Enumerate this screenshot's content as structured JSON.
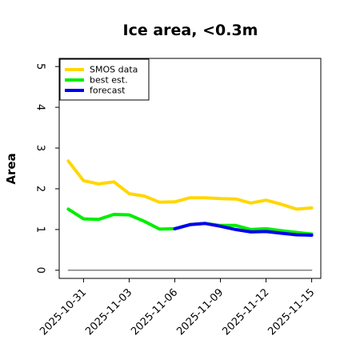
{
  "chart_data": {
    "type": "line",
    "title": "Ice area, <0.3m",
    "xlabel": "",
    "ylabel": "Area",
    "ylim": [
      -0.2,
      5.2
    ],
    "yticks": [
      0,
      1,
      2,
      3,
      4,
      5
    ],
    "x_start": "2025-10-30",
    "x_end": "2025-11-15",
    "xlim": [
      -0.6,
      16.6
    ],
    "xticks": [
      {
        "label": "2025-10-31",
        "pos": 1,
        "color": "#000000"
      },
      {
        "label": "2025-11-03",
        "pos": 4,
        "color": "#000000"
      },
      {
        "label": "2025-11-06",
        "pos": 7,
        "color": "#228B22"
      },
      {
        "label": "2025-11-09",
        "pos": 10,
        "color": "#000000"
      },
      {
        "label": "2025-11-12",
        "pos": 13,
        "color": "#000000"
      },
      {
        "label": "2025-11-15",
        "pos": 16,
        "color": "#000000"
      }
    ],
    "legend_position": "top-left",
    "grid": false,
    "series": [
      {
        "name": "SMOS data",
        "color": "#FFD700",
        "x": [
          0,
          1,
          2,
          3,
          4,
          5,
          6,
          7,
          8,
          9,
          10,
          11,
          12,
          13,
          14,
          15,
          16
        ],
        "values": [
          2.68,
          2.2,
          2.12,
          2.17,
          1.88,
          1.82,
          1.67,
          1.68,
          1.78,
          1.78,
          1.76,
          1.75,
          1.65,
          1.72,
          1.62,
          1.5,
          1.53
        ]
      },
      {
        "name": "best est.",
        "color": "#00EE00",
        "x": [
          0,
          1,
          2,
          3,
          4,
          5,
          6,
          7,
          8,
          9,
          10,
          11,
          12,
          13,
          14,
          15,
          16
        ],
        "values": [
          1.5,
          1.26,
          1.25,
          1.37,
          1.36,
          1.2,
          1.01,
          1.02,
          1.12,
          1.15,
          1.1,
          1.1,
          1.0,
          1.02,
          0.97,
          0.93,
          0.89
        ]
      },
      {
        "name": "forecast",
        "color": "#0000EE",
        "x": [
          7,
          8,
          9,
          10,
          11,
          12,
          13,
          14,
          15,
          16
        ],
        "values": [
          1.02,
          1.12,
          1.15,
          1.08,
          1.0,
          0.94,
          0.95,
          0.91,
          0.87,
          0.86
        ]
      },
      {
        "name": "",
        "color": "#808080",
        "x": [
          0,
          16
        ],
        "values": [
          0,
          0
        ]
      }
    ]
  }
}
